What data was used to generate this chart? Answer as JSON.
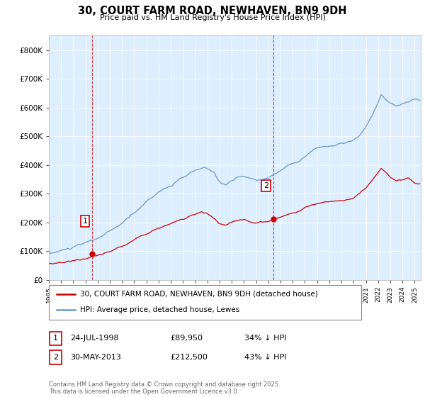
{
  "title": "30, COURT FARM ROAD, NEWHAVEN, BN9 9DH",
  "subtitle": "Price paid vs. HM Land Registry's House Price Index (HPI)",
  "legend_line1": "30, COURT FARM ROAD, NEWHAVEN, BN9 9DH (detached house)",
  "legend_line2": "HPI: Average price, detached house, Lewes",
  "footer": "Contains HM Land Registry data © Crown copyright and database right 2025.\nThis data is licensed under the Open Government Licence v3.0.",
  "sale1_label": "1",
  "sale1_date": "24-JUL-1998",
  "sale1_price": "£89,950",
  "sale1_hpi": "34% ↓ HPI",
  "sale2_label": "2",
  "sale2_date": "30-MAY-2013",
  "sale2_price": "£212,500",
  "sale2_hpi": "43% ↓ HPI",
  "red_color": "#cc0000",
  "blue_color": "#6699cc",
  "bg_color": "#ddeeff",
  "ylim": [
    0,
    850000
  ],
  "yticks": [
    0,
    100000,
    200000,
    300000,
    400000,
    500000,
    600000,
    700000,
    800000
  ],
  "sale1_x": 1998.56,
  "sale1_y": 89950,
  "sale2_x": 2013.41,
  "sale2_y": 212500,
  "xmin": 1995.0,
  "xmax": 2025.5
}
